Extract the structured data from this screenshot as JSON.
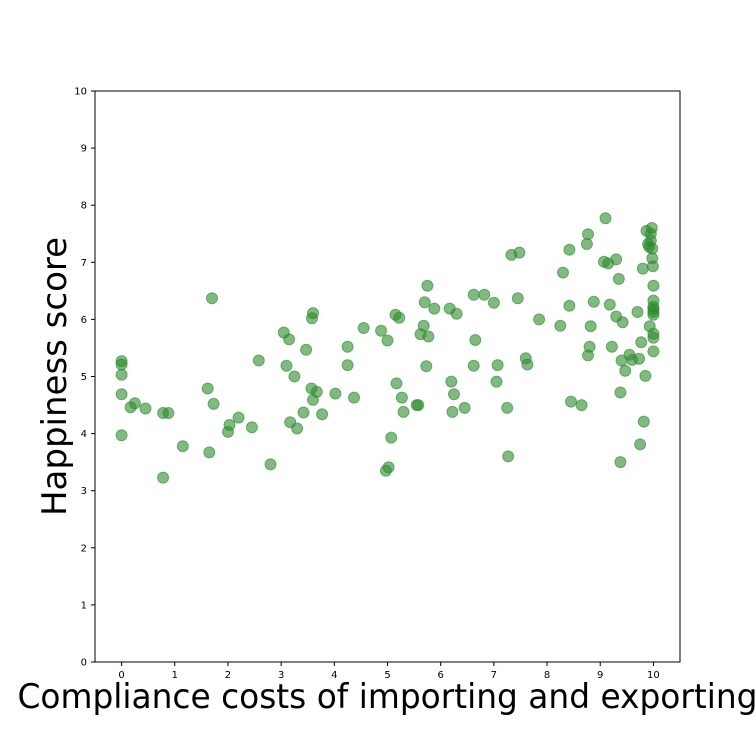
{
  "chart_data": {
    "type": "scatter",
    "title": "",
    "xlabel": "Compliance costs of importing and exporting",
    "ylabel": "Happiness score",
    "xlim": [
      -0.5,
      10.5
    ],
    "ylim": [
      0,
      10
    ],
    "xticks": [
      "0",
      "1",
      "2",
      "3",
      "4",
      "5",
      "6",
      "7",
      "8",
      "9",
      "10"
    ],
    "yticks": [
      "0",
      "1",
      "2",
      "3",
      "4",
      "5",
      "6",
      "7",
      "8",
      "9",
      "10"
    ],
    "grid": false,
    "marker_color": "#2e8b2e",
    "marker_opacity": 0.6,
    "points": [
      [
        0.0,
        5.27
      ],
      [
        0.0,
        5.21
      ],
      [
        0.0,
        5.03
      ],
      [
        0.0,
        4.69
      ],
      [
        0.0,
        3.97
      ],
      [
        0.17,
        4.46
      ],
      [
        0.25,
        4.53
      ],
      [
        0.45,
        4.44
      ],
      [
        0.78,
        4.36
      ],
      [
        0.78,
        3.23
      ],
      [
        0.88,
        4.36
      ],
      [
        1.15,
        3.78
      ],
      [
        1.62,
        4.79
      ],
      [
        1.65,
        3.67
      ],
      [
        1.7,
        6.37
      ],
      [
        1.73,
        4.52
      ],
      [
        2.0,
        4.03
      ],
      [
        2.03,
        4.15
      ],
      [
        2.2,
        4.28
      ],
      [
        2.45,
        4.11
      ],
      [
        2.58,
        5.28
      ],
      [
        2.8,
        3.46
      ],
      [
        3.05,
        5.77
      ],
      [
        3.1,
        5.19
      ],
      [
        3.15,
        5.65
      ],
      [
        3.17,
        4.2
      ],
      [
        3.25,
        5.0
      ],
      [
        3.3,
        4.09
      ],
      [
        3.42,
        4.37
      ],
      [
        3.47,
        5.47
      ],
      [
        3.57,
        4.79
      ],
      [
        3.58,
        6.02
      ],
      [
        3.6,
        6.11
      ],
      [
        3.6,
        4.59
      ],
      [
        3.67,
        4.73
      ],
      [
        3.77,
        4.34
      ],
      [
        4.02,
        4.7
      ],
      [
        4.25,
        5.52
      ],
      [
        4.25,
        5.2
      ],
      [
        4.37,
        4.63
      ],
      [
        4.55,
        5.85
      ],
      [
        4.88,
        5.8
      ],
      [
        4.97,
        3.35
      ],
      [
        5.02,
        3.41
      ],
      [
        5.0,
        5.63
      ],
      [
        5.07,
        3.93
      ],
      [
        5.15,
        6.08
      ],
      [
        5.17,
        4.88
      ],
      [
        5.22,
        6.03
      ],
      [
        5.27,
        4.63
      ],
      [
        5.3,
        4.38
      ],
      [
        5.55,
        4.5
      ],
      [
        5.58,
        4.5
      ],
      [
        5.62,
        5.74
      ],
      [
        5.68,
        5.89
      ],
      [
        5.7,
        6.3
      ],
      [
        5.73,
        5.18
      ],
      [
        5.75,
        6.59
      ],
      [
        5.77,
        5.7
      ],
      [
        5.88,
        6.19
      ],
      [
        6.17,
        6.19
      ],
      [
        6.2,
        4.91
      ],
      [
        6.22,
        4.38
      ],
      [
        6.25,
        4.69
      ],
      [
        6.3,
        6.1
      ],
      [
        6.45,
        4.45
      ],
      [
        6.62,
        6.43
      ],
      [
        6.62,
        5.19
      ],
      [
        6.65,
        5.64
      ],
      [
        6.82,
        6.43
      ],
      [
        7.0,
        6.29
      ],
      [
        7.05,
        4.91
      ],
      [
        7.07,
        5.2
      ],
      [
        7.25,
        4.45
      ],
      [
        7.27,
        3.6
      ],
      [
        7.33,
        7.13
      ],
      [
        7.45,
        6.37
      ],
      [
        7.48,
        7.17
      ],
      [
        7.6,
        5.32
      ],
      [
        7.63,
        5.21
      ],
      [
        7.85,
        6.0
      ],
      [
        8.25,
        5.89
      ],
      [
        8.3,
        6.82
      ],
      [
        8.42,
        7.22
      ],
      [
        8.42,
        6.24
      ],
      [
        8.45,
        4.56
      ],
      [
        8.65,
        4.5
      ],
      [
        8.75,
        7.32
      ],
      [
        8.77,
        7.49
      ],
      [
        8.77,
        5.37
      ],
      [
        8.8,
        5.52
      ],
      [
        8.82,
        5.88
      ],
      [
        8.88,
        6.31
      ],
      [
        9.07,
        7.01
      ],
      [
        9.1,
        7.77
      ],
      [
        9.15,
        6.98
      ],
      [
        9.18,
        6.26
      ],
      [
        9.22,
        5.52
      ],
      [
        9.3,
        7.05
      ],
      [
        9.3,
        6.05
      ],
      [
        9.35,
        6.71
      ],
      [
        9.38,
        4.72
      ],
      [
        9.38,
        3.5
      ],
      [
        9.4,
        5.28
      ],
      [
        9.42,
        5.95
      ],
      [
        9.47,
        5.1
      ],
      [
        9.55,
        5.38
      ],
      [
        9.6,
        5.29
      ],
      [
        9.7,
        6.13
      ],
      [
        9.73,
        5.31
      ],
      [
        9.75,
        3.81
      ],
      [
        9.77,
        5.6
      ],
      [
        9.8,
        6.89
      ],
      [
        9.82,
        4.21
      ],
      [
        9.85,
        5.01
      ],
      [
        9.87,
        7.55
      ],
      [
        9.9,
        7.32
      ],
      [
        9.92,
        7.27
      ],
      [
        9.93,
        5.88
      ],
      [
        9.95,
        7.5
      ],
      [
        9.95,
        7.38
      ],
      [
        9.97,
        7.6
      ],
      [
        9.98,
        7.24
      ],
      [
        9.98,
        7.07
      ],
      [
        9.99,
        6.93
      ],
      [
        10.0,
        6.59
      ],
      [
        10.0,
        6.33
      ],
      [
        10.0,
        6.22
      ],
      [
        10.0,
        6.18
      ],
      [
        10.0,
        6.13
      ],
      [
        10.0,
        6.08
      ],
      [
        10.0,
        5.75
      ],
      [
        10.0,
        5.68
      ],
      [
        10.0,
        5.44
      ]
    ]
  }
}
